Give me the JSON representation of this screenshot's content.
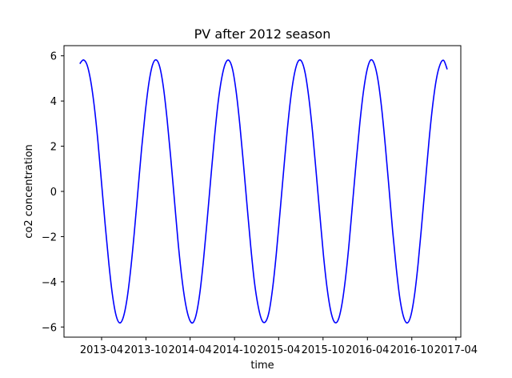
{
  "chart_data": {
    "type": "line",
    "title": "PV after 2012 season",
    "xlabel": "time",
    "ylabel": "co2 concentration",
    "x_type": "date",
    "xlim": [
      "2012-10-28",
      "2017-04-21"
    ],
    "ylim": [
      -6.45,
      6.45
    ],
    "grid": false,
    "legend": "none",
    "x_ticks": [
      {
        "value": "2013-04-01",
        "label": "2013-04"
      },
      {
        "value": "2013-10-01",
        "label": "2013-10"
      },
      {
        "value": "2014-04-01",
        "label": "2014-04"
      },
      {
        "value": "2014-10-01",
        "label": "2014-10"
      },
      {
        "value": "2015-04-01",
        "label": "2015-04"
      },
      {
        "value": "2015-10-01",
        "label": "2015-10"
      },
      {
        "value": "2016-04-01",
        "label": "2016-04"
      },
      {
        "value": "2016-10-01",
        "label": "2016-10"
      },
      {
        "value": "2017-04-01",
        "label": "2017-04"
      }
    ],
    "y_ticks": [
      {
        "value": 6,
        "label": "6"
      },
      {
        "value": 4,
        "label": "4"
      },
      {
        "value": 2,
        "label": "2"
      },
      {
        "value": 0,
        "label": "0"
      },
      {
        "value": -2,
        "label": "−2"
      },
      {
        "value": -4,
        "label": "−4"
      },
      {
        "value": -6,
        "label": "−6"
      }
    ],
    "series": [
      {
        "color": "#0000ff",
        "points": [
          {
            "x": "2013-01-01",
            "y": 5.65
          },
          {
            "x": "2013-01-16",
            "y": 5.82
          },
          {
            "x": "2013-01-31",
            "y": 5.6
          },
          {
            "x": "2013-02-15",
            "y": 4.9
          },
          {
            "x": "2013-03-02",
            "y": 3.75
          },
          {
            "x": "2013-03-17",
            "y": 2.2
          },
          {
            "x": "2013-04-01",
            "y": 0.35
          },
          {
            "x": "2013-04-16",
            "y": -1.5
          },
          {
            "x": "2013-05-01",
            "y": -3.2
          },
          {
            "x": "2013-05-16",
            "y": -4.6
          },
          {
            "x": "2013-05-31",
            "y": -5.5
          },
          {
            "x": "2013-06-15",
            "y": -5.82
          },
          {
            "x": "2013-06-30",
            "y": -5.55
          },
          {
            "x": "2013-07-15",
            "y": -4.75
          },
          {
            "x": "2013-07-30",
            "y": -3.45
          },
          {
            "x": "2013-08-14",
            "y": -1.8
          },
          {
            "x": "2013-08-29",
            "y": 0.05
          },
          {
            "x": "2013-09-13",
            "y": 1.9
          },
          {
            "x": "2013-09-28",
            "y": 3.5
          },
          {
            "x": "2013-10-13",
            "y": 4.8
          },
          {
            "x": "2013-10-28",
            "y": 5.6
          },
          {
            "x": "2013-11-12",
            "y": 5.82
          },
          {
            "x": "2013-11-27",
            "y": 5.5
          },
          {
            "x": "2013-12-12",
            "y": 4.6
          },
          {
            "x": "2013-12-27",
            "y": 3.2
          },
          {
            "x": "2014-01-11",
            "y": 1.5
          },
          {
            "x": "2014-01-26",
            "y": -0.35
          },
          {
            "x": "2014-02-10",
            "y": -2.2
          },
          {
            "x": "2014-02-25",
            "y": -3.75
          },
          {
            "x": "2014-03-12",
            "y": -4.9
          },
          {
            "x": "2014-03-27",
            "y": -5.6
          },
          {
            "x": "2014-04-11",
            "y": -5.82
          },
          {
            "x": "2014-04-26",
            "y": -5.45
          },
          {
            "x": "2014-05-11",
            "y": -4.5
          },
          {
            "x": "2014-05-26",
            "y": -3.05
          },
          {
            "x": "2014-06-10",
            "y": -1.3
          },
          {
            "x": "2014-06-25",
            "y": 0.55
          },
          {
            "x": "2014-07-10",
            "y": 2.35
          },
          {
            "x": "2014-07-25",
            "y": 3.9
          },
          {
            "x": "2014-08-09",
            "y": 5.0
          },
          {
            "x": "2014-08-24",
            "y": 5.65
          },
          {
            "x": "2014-09-08",
            "y": 5.8
          },
          {
            "x": "2014-09-23",
            "y": 5.4
          },
          {
            "x": "2014-10-08",
            "y": 4.4
          },
          {
            "x": "2014-10-23",
            "y": 2.95
          },
          {
            "x": "2014-11-07",
            "y": 1.2
          },
          {
            "x": "2014-11-22",
            "y": -0.65
          },
          {
            "x": "2014-12-07",
            "y": -2.45
          },
          {
            "x": "2014-12-22",
            "y": -4.0
          },
          {
            "x": "2015-01-06",
            "y": -5.05
          },
          {
            "x": "2015-01-21",
            "y": -5.68
          },
          {
            "x": "2015-02-05",
            "y": -5.78
          },
          {
            "x": "2015-02-20",
            "y": -5.35
          },
          {
            "x": "2015-03-07",
            "y": -4.3
          },
          {
            "x": "2015-03-22",
            "y": -2.8
          },
          {
            "x": "2015-04-06",
            "y": -1.0
          },
          {
            "x": "2015-04-21",
            "y": 0.85
          },
          {
            "x": "2015-05-06",
            "y": 2.65
          },
          {
            "x": "2015-05-21",
            "y": 4.15
          },
          {
            "x": "2015-06-05",
            "y": 5.2
          },
          {
            "x": "2015-06-20",
            "y": 5.75
          },
          {
            "x": "2015-07-05",
            "y": 5.75
          },
          {
            "x": "2015-07-20",
            "y": 5.2
          },
          {
            "x": "2015-08-04",
            "y": 4.1
          },
          {
            "x": "2015-08-19",
            "y": 2.6
          },
          {
            "x": "2015-09-03",
            "y": 0.8
          },
          {
            "x": "2015-09-18",
            "y": -1.05
          },
          {
            "x": "2015-10-03",
            "y": -2.85
          },
          {
            "x": "2015-10-18",
            "y": -4.3
          },
          {
            "x": "2015-11-02",
            "y": -5.3
          },
          {
            "x": "2015-11-17",
            "y": -5.78
          },
          {
            "x": "2015-12-02",
            "y": -5.7
          },
          {
            "x": "2015-12-17",
            "y": -5.05
          },
          {
            "x": "2016-01-01",
            "y": -3.9
          },
          {
            "x": "2016-01-16",
            "y": -2.35
          },
          {
            "x": "2016-01-31",
            "y": -0.5
          },
          {
            "x": "2016-02-15",
            "y": 1.35
          },
          {
            "x": "2016-03-01",
            "y": 3.05
          },
          {
            "x": "2016-03-16",
            "y": 4.45
          },
          {
            "x": "2016-03-31",
            "y": 5.4
          },
          {
            "x": "2016-04-15",
            "y": 5.82
          },
          {
            "x": "2016-04-30",
            "y": 5.62
          },
          {
            "x": "2016-05-15",
            "y": 4.9
          },
          {
            "x": "2016-05-30",
            "y": 3.65
          },
          {
            "x": "2016-06-14",
            "y": 2.0
          },
          {
            "x": "2016-06-29",
            "y": 0.15
          },
          {
            "x": "2016-07-14",
            "y": -1.75
          },
          {
            "x": "2016-07-29",
            "y": -3.4
          },
          {
            "x": "2016-08-13",
            "y": -4.75
          },
          {
            "x": "2016-08-28",
            "y": -5.55
          },
          {
            "x": "2016-09-12",
            "y": -5.82
          },
          {
            "x": "2016-09-27",
            "y": -5.5
          },
          {
            "x": "2016-10-12",
            "y": -4.6
          },
          {
            "x": "2016-10-27",
            "y": -3.2
          },
          {
            "x": "2016-11-11",
            "y": -1.45
          },
          {
            "x": "2016-11-26",
            "y": 0.4
          },
          {
            "x": "2016-12-11",
            "y": 2.25
          },
          {
            "x": "2016-12-26",
            "y": 3.8
          },
          {
            "x": "2017-01-10",
            "y": 4.95
          },
          {
            "x": "2017-01-25",
            "y": 5.6
          },
          {
            "x": "2017-02-09",
            "y": 5.8
          },
          {
            "x": "2017-02-24",
            "y": 5.4
          }
        ]
      }
    ]
  }
}
